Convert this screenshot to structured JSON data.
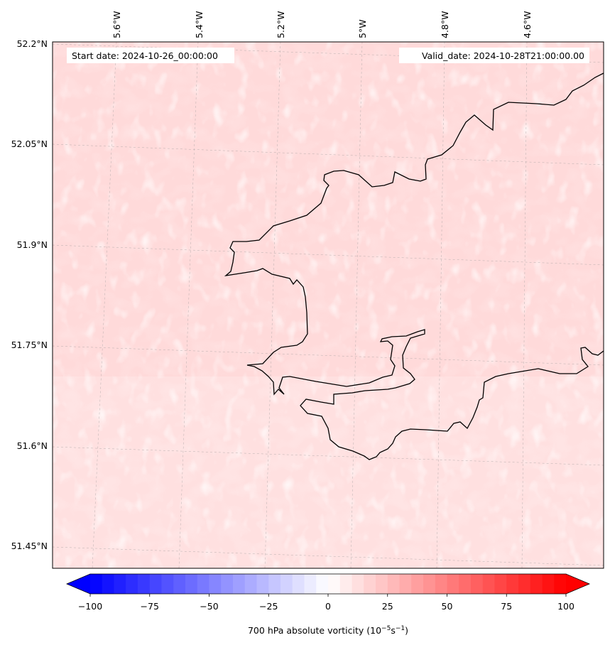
{
  "map": {
    "start_date_label": "Start date: 2024-10-26_00:00:00",
    "valid_date_label": "Valid_date: 2024-10-28T21:00:00.00",
    "lon_labels": [
      "5.6°W",
      "5.4°W",
      "5.2°W",
      "5°W",
      "4.8°W",
      "4.6°W"
    ],
    "lat_labels": [
      "52.2°N",
      "52.05°N",
      "51.9°N",
      "51.75°N",
      "51.6°N",
      "51.45°N"
    ]
  },
  "colorbar": {
    "label_prefix": "700 hPa absolute vorticity (10",
    "label_exp1": "−5",
    "label_mid": "s",
    "label_exp2": "−1",
    "label_suffix": ")",
    "ticks": [
      -100,
      -75,
      -50,
      -25,
      0,
      25,
      50,
      75,
      100
    ],
    "tick_labels": [
      "−100",
      "−75",
      "−50",
      "−25",
      "0",
      "25",
      "50",
      "75",
      "100"
    ],
    "min": -100,
    "max": 100,
    "step": 5,
    "colormap": "bwr",
    "extend": "both"
  },
  "colors": {
    "field_base": "#ffdede",
    "coastline": "#000000"
  }
}
